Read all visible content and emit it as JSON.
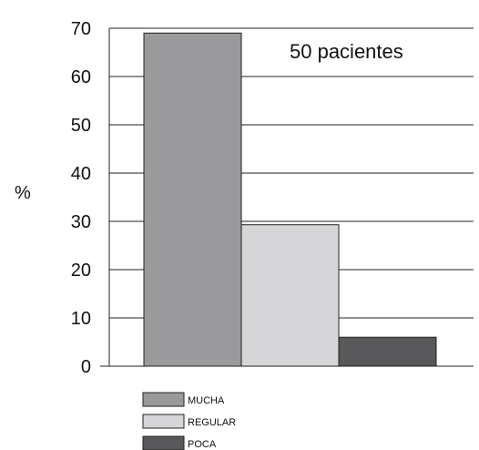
{
  "chart_data": {
    "type": "bar",
    "categories": [
      "MUCHA",
      "REGULAR",
      "POCA"
    ],
    "values": [
      69,
      29.3,
      6
    ],
    "colors": [
      "#9a9a9c",
      "#d6d6d8",
      "#58585a"
    ],
    "title": "",
    "xlabel": "",
    "ylabel": "%",
    "ylim": [
      0,
      70
    ],
    "yticks": [
      0,
      10,
      20,
      30,
      40,
      50,
      60,
      70
    ],
    "grid": true,
    "legend_position": "bottom-left",
    "annotation": "50 pacientes"
  }
}
